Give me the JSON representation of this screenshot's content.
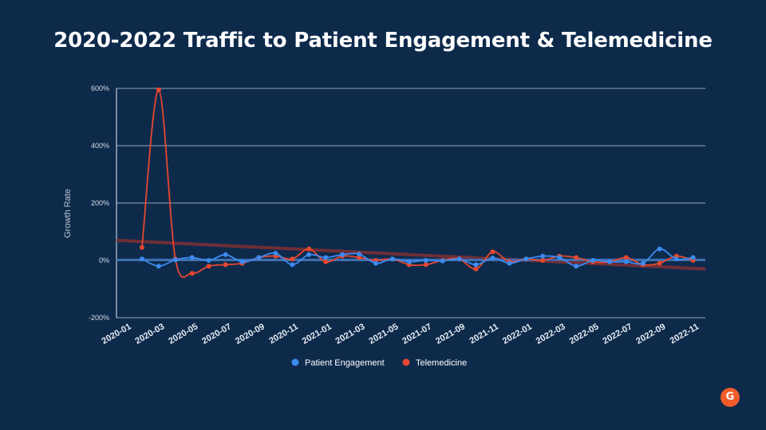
{
  "title": "2020-2022 Traffic to Patient Engagement & Telemedicine",
  "logo_text": "G",
  "colors": {
    "background": "#0d2a4b",
    "patient_engagement": "#3b8bf0",
    "telemedicine": "#e8472f",
    "trend_telemedicine": "#7a2f35",
    "trend_patient": "#3a6fb8"
  },
  "chart_data": {
    "type": "line",
    "ylabel": "Growth Rate",
    "xlabel": "",
    "ylim": [
      -200,
      600
    ],
    "yticks": [
      -200,
      0,
      200,
      400,
      600
    ],
    "ytick_labels": [
      "-200%",
      "0%",
      "200%",
      "400%",
      "600%"
    ],
    "grid": true,
    "legend_position": "bottom",
    "x_tick_labels": [
      "2020-01",
      "2020-03",
      "2020-05",
      "2020-07",
      "2020-09",
      "2020-11",
      "2021-01",
      "2021-03",
      "2021-05",
      "2021-07",
      "2021-09",
      "2021-11",
      "2022-01",
      "2022-03",
      "2022-05",
      "2022-07",
      "2022-09",
      "2022-11"
    ],
    "x": [
      "2020-02",
      "2020-03",
      "2020-04",
      "2020-05",
      "2020-06",
      "2020-07",
      "2020-08",
      "2020-09",
      "2020-10",
      "2020-11",
      "2020-12",
      "2021-01",
      "2021-02",
      "2021-03",
      "2021-04",
      "2021-05",
      "2021-06",
      "2021-07",
      "2021-08",
      "2021-09",
      "2021-10",
      "2021-11",
      "2021-12",
      "2022-01",
      "2022-02",
      "2022-03",
      "2022-04",
      "2022-05",
      "2022-06",
      "2022-07",
      "2022-08",
      "2022-09",
      "2022-10",
      "2022-11"
    ],
    "series": [
      {
        "name": "Patient Engagement",
        "values": [
          5,
          -20,
          2,
          10,
          0,
          20,
          -5,
          10,
          25,
          -15,
          20,
          10,
          20,
          22,
          -10,
          5,
          -5,
          0,
          -2,
          5,
          -15,
          8,
          -10,
          5,
          15,
          10,
          -20,
          0,
          -5,
          -5,
          -10,
          40,
          5,
          10
        ],
        "trendline": [
          2,
          2
        ]
      },
      {
        "name": "Telemedicine",
        "values": [
          45,
          595,
          5,
          -45,
          -20,
          -15,
          -10,
          10,
          15,
          5,
          40,
          -5,
          15,
          10,
          0,
          5,
          -15,
          -15,
          0,
          5,
          -30,
          30,
          -5,
          5,
          0,
          15,
          10,
          -5,
          -5,
          10,
          -15,
          -10,
          15,
          0
        ],
        "trendline": [
          70,
          -30
        ]
      }
    ]
  }
}
